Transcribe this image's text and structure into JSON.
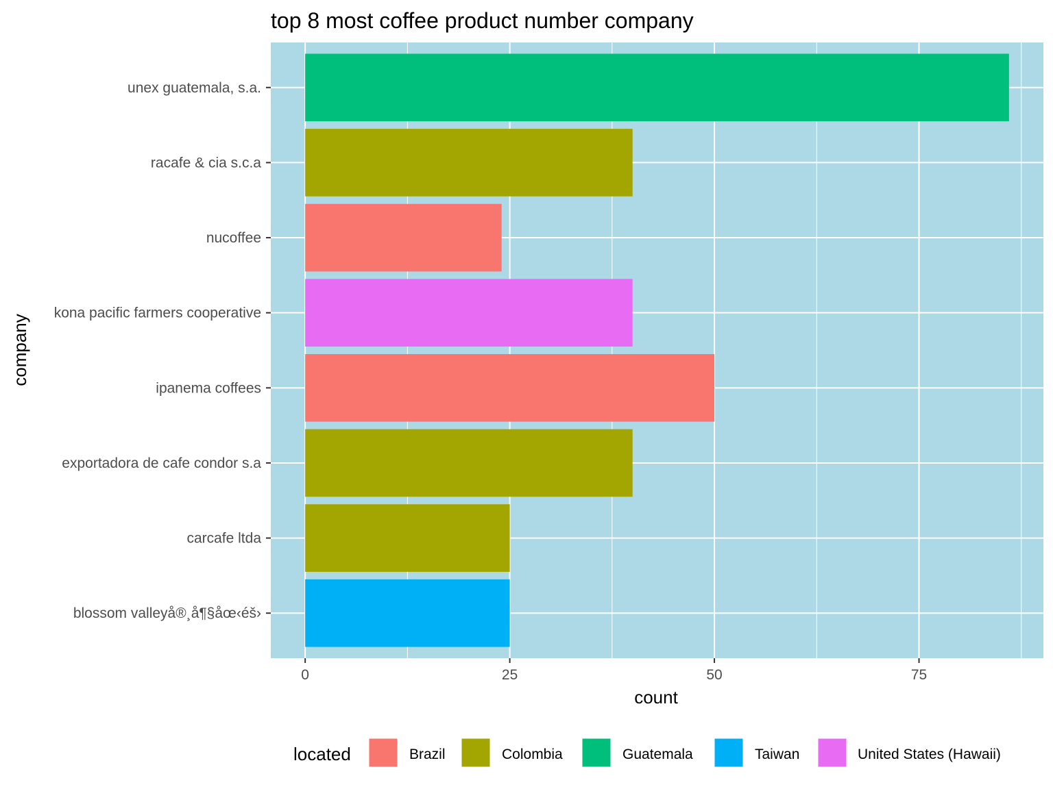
{
  "chart_data": {
    "type": "bar",
    "orientation": "horizontal",
    "title": "top 8 most coffee product number company",
    "xlabel": "count",
    "ylabel": "company",
    "xlim": [
      -4.2,
      90.2
    ],
    "xticks": [
      0,
      25,
      50,
      75
    ],
    "xtick_labels": [
      "0",
      "25",
      "50",
      "75"
    ],
    "x_minor_gridlines": [
      12.5,
      37.5,
      62.5,
      87.5
    ],
    "grid": true,
    "panel_background": "#add8e6",
    "categories": [
      "unex guatemala, s.a.",
      "racafe & cia s.c.a",
      "nucoffee",
      "kona pacific farmers cooperative",
      "ipanema coffees",
      "exportadora de cafe condor s.a",
      "carcafe ltda",
      "blossom valleyå®¸å¶§åœ‹éš›"
    ],
    "values": [
      86,
      40,
      24,
      40,
      50,
      40,
      25,
      25
    ],
    "located": [
      "Guatemala",
      "Colombia",
      "Brazil",
      "United States (Hawaii)",
      "Brazil",
      "Colombia",
      "Colombia",
      "Taiwan"
    ],
    "legend": {
      "title": "located",
      "position": "bottom",
      "entries": [
        {
          "name": "Brazil",
          "color": "#F8766D"
        },
        {
          "name": "Colombia",
          "color": "#A3A500"
        },
        {
          "name": "Guatemala",
          "color": "#00BF7D"
        },
        {
          "name": "Taiwan",
          "color": "#00B0F6"
        },
        {
          "name": "United States (Hawaii)",
          "color": "#E76BF3"
        }
      ]
    }
  }
}
